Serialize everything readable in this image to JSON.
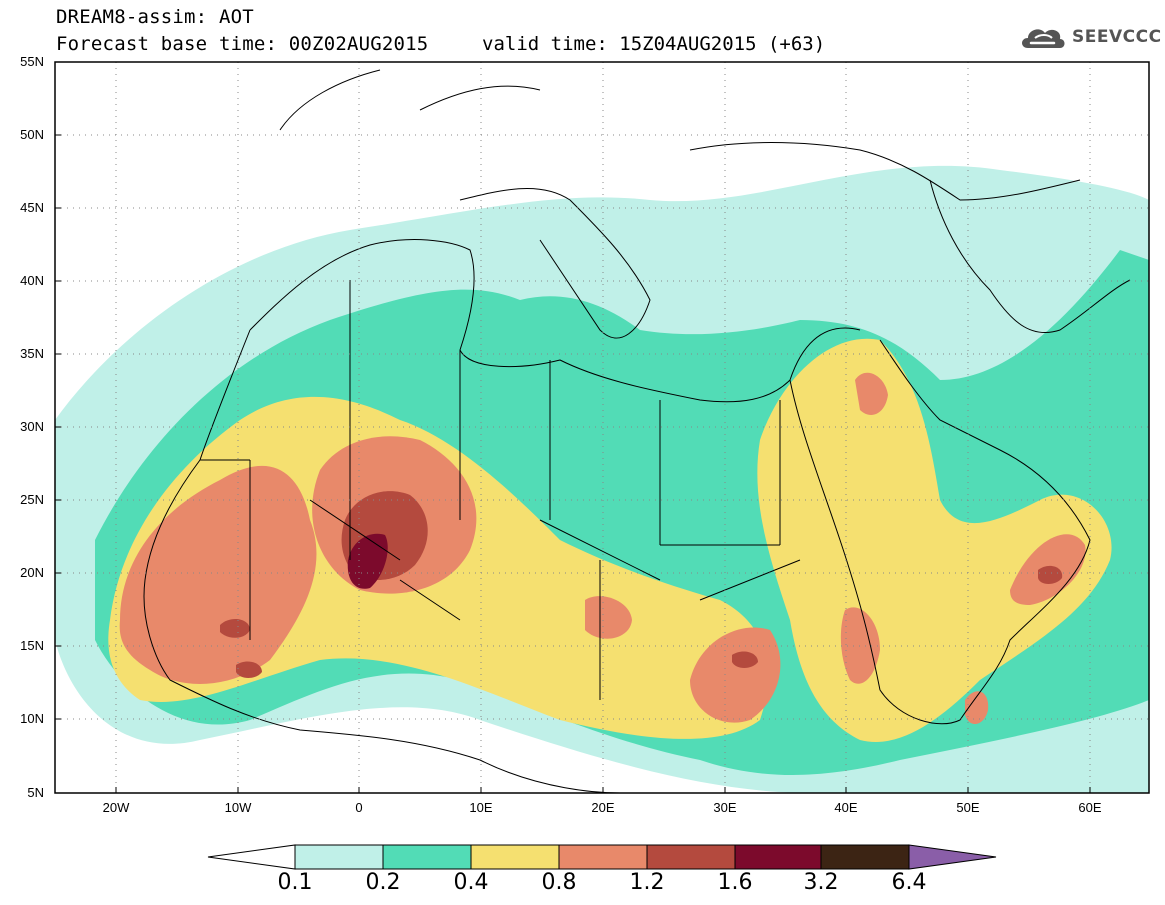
{
  "header": {
    "line1": "DREAM8-assim: AOT",
    "line2": "Forecast base time: 00Z02AUG2015",
    "valid": "valid time: 15Z04AUG2015 (+63)",
    "logo_text": "SEEVCCC",
    "logo_icon": "cloud-icon"
  },
  "map": {
    "lat_labels": [
      "55N",
      "50N",
      "45N",
      "40N",
      "35N",
      "30N",
      "25N",
      "20N",
      "15N",
      "10N",
      "5N"
    ],
    "lon_labels": [
      "20W",
      "10W",
      "0",
      "10E",
      "20E",
      "30E",
      "40E",
      "50E",
      "60E"
    ],
    "ocean_color": "#ffffff",
    "border_color": "#000000"
  },
  "colorbar": {
    "levels": [
      "0.1",
      "0.2",
      "0.4",
      "0.8",
      "1.2",
      "1.6",
      "3.2",
      "6.4"
    ],
    "colors": [
      "#ffffff",
      "#c0f0e8",
      "#52dcb6",
      "#f5e070",
      "#e8896a",
      "#b44a3e",
      "#7c0a2c",
      "#3c2414",
      "#8a5ea8"
    ]
  }
}
